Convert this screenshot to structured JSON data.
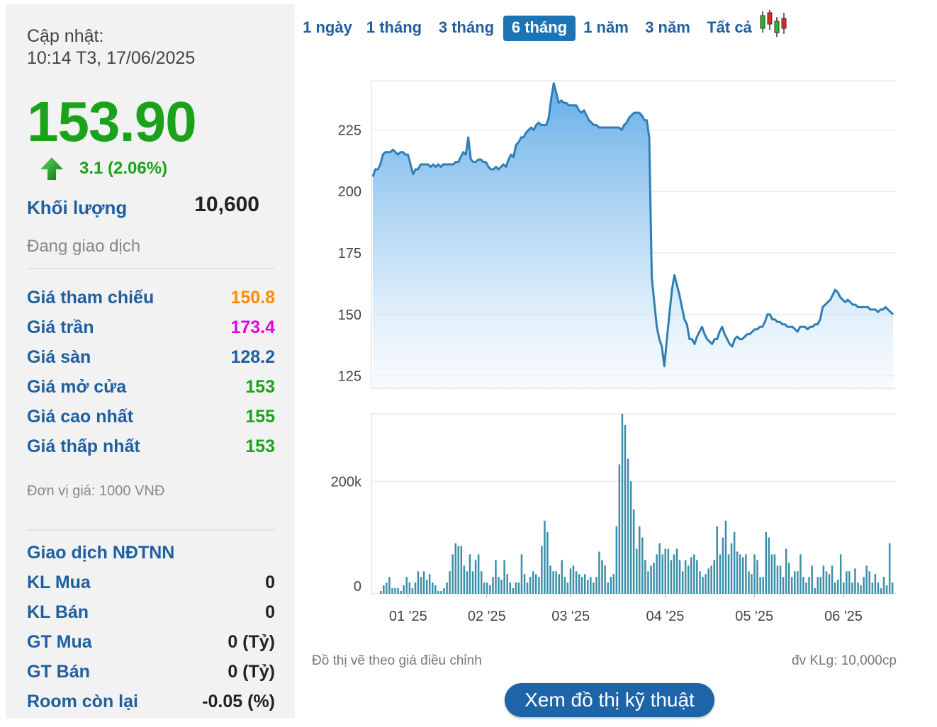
{
  "info": {
    "update_label": "Cập nhật:",
    "update_time": "10:14 T3, 17/06/2025",
    "price": "153.90",
    "change": "3.1 (2.06%)",
    "volume_label": "Khối lượng",
    "volume_value": "10,600",
    "status": "Đang giao dịch",
    "rows": [
      {
        "label": "Giá tham chiếu",
        "value": "150.8",
        "color": "#ff8c00"
      },
      {
        "label": "Giá trần",
        "value": "173.4",
        "color": "#e000e0"
      },
      {
        "label": "Giá sàn",
        "value": "128.2",
        "color": "#1f5fa0"
      },
      {
        "label": "Giá mở cửa",
        "value": "153",
        "color": "#1aa31a"
      },
      {
        "label": "Giá cao nhất",
        "value": "155",
        "color": "#1aa31a"
      },
      {
        "label": "Giá thấp nhất",
        "value": "153",
        "color": "#1aa31a"
      }
    ],
    "unit_note": "Đơn vị giá: 1000 VNĐ",
    "foreign_title": "Giao dịch NĐTNN",
    "foreign_rows": [
      {
        "label": "KL Mua",
        "value": "0"
      },
      {
        "label": "KL Bán",
        "value": "0"
      },
      {
        "label": "GT Mua",
        "value": "0 (Tỷ)"
      },
      {
        "label": "GT Bán",
        "value": "0 (Tỷ)"
      },
      {
        "label": "Room còn lại",
        "value": "-0.05 (%)"
      }
    ]
  },
  "tabs": [
    {
      "label": "1 ngày",
      "active": false
    },
    {
      "label": "1 tháng",
      "active": false
    },
    {
      "label": "3 tháng",
      "active": false
    },
    {
      "label": "6 tháng",
      "active": true
    },
    {
      "label": "1 năm",
      "active": false
    },
    {
      "label": "3 năm",
      "active": false
    },
    {
      "label": "Tất cả",
      "active": false
    }
  ],
  "footnote_left": "Đồ thị vẽ theo giá điều chỉnh",
  "footnote_right": "đv KLg: 10,000cp",
  "tech_button": "Xem đồ thị kỹ thuật",
  "chart_data": [
    {
      "type": "area",
      "title": "",
      "y_ticks": [
        "225",
        "200",
        "175",
        "150",
        "125"
      ],
      "ylim": [
        120,
        245
      ],
      "x_ticks": [
        "01 '25",
        "02 '25",
        "03 '25",
        "04 '25",
        "05 '25",
        "06 '25"
      ],
      "color": "#2f7fb5",
      "values": [
        206,
        209,
        209,
        211,
        215,
        216,
        216,
        216,
        217,
        216,
        215,
        216,
        216,
        215,
        215,
        211,
        207,
        209,
        209,
        211,
        211,
        211,
        211,
        210,
        211,
        210,
        211,
        210,
        211,
        211,
        211,
        211,
        211,
        212,
        212,
        214,
        216,
        215,
        222,
        213,
        212,
        212,
        213,
        213,
        212,
        212,
        210,
        209,
        209,
        210,
        209,
        210,
        211,
        210,
        213,
        215,
        214,
        219,
        220,
        222,
        222,
        224,
        225,
        226,
        225,
        227,
        228,
        227,
        227,
        227,
        230,
        238,
        244,
        240,
        236,
        237,
        236,
        236,
        235,
        235,
        235,
        235,
        233,
        232,
        233,
        231,
        229,
        228,
        227,
        227,
        226,
        226,
        226,
        226,
        226,
        226,
        226,
        226,
        226,
        225,
        227,
        228,
        230,
        231,
        232,
        232,
        232,
        231,
        229,
        229,
        222,
        165,
        155,
        145,
        140,
        137,
        129,
        140,
        150,
        160,
        166,
        162,
        158,
        153,
        148,
        146,
        140,
        140,
        138,
        141,
        143,
        145,
        142,
        140,
        139,
        138,
        140,
        140,
        143,
        145,
        142,
        140,
        138,
        137,
        140,
        141,
        140,
        140,
        141,
        142,
        142,
        143,
        144,
        144,
        145,
        145,
        147,
        150,
        150,
        148,
        148,
        147,
        147,
        146,
        146,
        145,
        145,
        145,
        144,
        143,
        145,
        145,
        145,
        144,
        145,
        145,
        146,
        146,
        148,
        153,
        154,
        155,
        156,
        158,
        160,
        159,
        157,
        156,
        155,
        156,
        155,
        154,
        154,
        153,
        153,
        153,
        153,
        153,
        152,
        152,
        152,
        151,
        152,
        152,
        153,
        152,
        151,
        150
      ],
      "series": [
        {
          "name": "",
          "values": []
        }
      ]
    },
    {
      "type": "bar",
      "title": "",
      "y_ticks": [
        "200k",
        "0"
      ],
      "ylim": [
        0,
        320000
      ],
      "x_ticks": [
        "01 '25",
        "02 '25",
        "03 '25",
        "04 '25",
        "05 '25",
        "06 '25"
      ],
      "color": "#3c8fa8",
      "values": [
        5000,
        15000,
        20000,
        30000,
        10000,
        10000,
        10000,
        5000,
        15000,
        30000,
        20000,
        10000,
        20000,
        40000,
        30000,
        40000,
        25000,
        35000,
        20000,
        15000,
        5000,
        5000,
        10000,
        20000,
        40000,
        70000,
        90000,
        85000,
        85000,
        50000,
        40000,
        70000,
        40000,
        60000,
        70000,
        40000,
        20000,
        20000,
        15000,
        30000,
        60000,
        30000,
        25000,
        60000,
        35000,
        20000,
        10000,
        20000,
        20000,
        70000,
        35000,
        20000,
        30000,
        40000,
        35000,
        30000,
        85000,
        130000,
        110000,
        50000,
        40000,
        40000,
        35000,
        60000,
        30000,
        20000,
        45000,
        50000,
        40000,
        35000,
        30000,
        35000,
        25000,
        30000,
        20000,
        30000,
        75000,
        60000,
        50000,
        20000,
        30000,
        35000,
        120000,
        230000,
        320000,
        300000,
        240000,
        200000,
        150000,
        80000,
        120000,
        100000,
        60000,
        40000,
        50000,
        55000,
        70000,
        90000,
        70000,
        80000,
        80000,
        60000,
        70000,
        80000,
        60000,
        40000,
        60000,
        50000,
        65000,
        70000,
        60000,
        40000,
        30000,
        35000,
        45000,
        50000,
        60000,
        120000,
        70000,
        100000,
        130000,
        70000,
        90000,
        110000,
        75000,
        70000,
        65000,
        70000,
        40000,
        35000,
        70000,
        60000,
        30000,
        30000,
        110000,
        100000,
        70000,
        70000,
        50000,
        50000,
        30000,
        80000,
        55000,
        30000,
        40000,
        40000,
        70000,
        30000,
        20000,
        30000,
        50000,
        10000,
        30000,
        30000,
        50000,
        40000,
        35000,
        50000,
        20000,
        25000,
        70000,
        20000,
        40000,
        40000,
        20000,
        45000,
        20000,
        15000,
        30000,
        50000,
        40000,
        20000,
        35000,
        20000,
        10000,
        30000,
        15000,
        90000,
        20000
      ]
    }
  ]
}
